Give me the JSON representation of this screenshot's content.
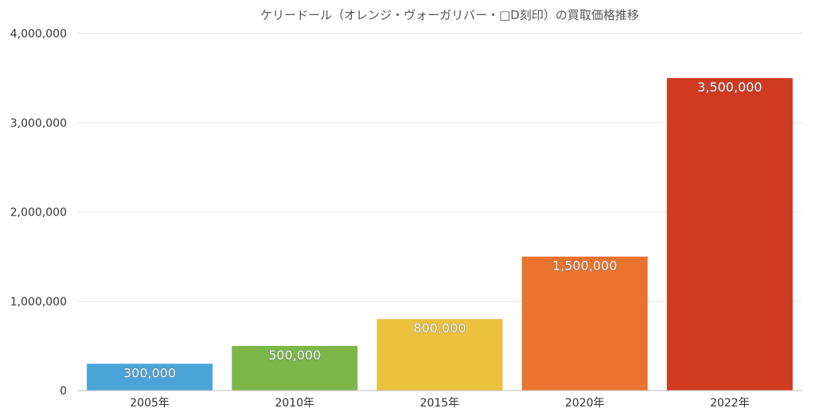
{
  "chart_data": {
    "type": "bar",
    "title": "ケリードール（オレンジ・ヴォーガリバー・□D刻印）の買取価格推移",
    "xlabel": "",
    "ylabel": "",
    "categories": [
      "2005年",
      "2010年",
      "2015年",
      "2020年",
      "2022年"
    ],
    "values": [
      300000,
      500000,
      800000,
      1500000,
      3500000
    ],
    "value_labels": [
      "300,000",
      "500,000",
      "800,000",
      "1,500,000",
      "3,500,000"
    ],
    "colors": [
      "#4aa3d9",
      "#7ab648",
      "#ebc13e",
      "#eb7330",
      "#cf3a20"
    ],
    "ylim": [
      0,
      4000000
    ],
    "yticks": [
      0,
      1000000,
      2000000,
      3000000,
      4000000
    ],
    "ytick_labels": [
      "0",
      "1,000,000",
      "2,000,000",
      "3,000,000",
      "4,000,000"
    ],
    "grid": true,
    "legend": "none"
  }
}
